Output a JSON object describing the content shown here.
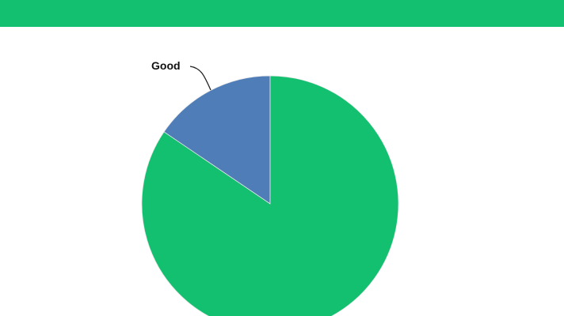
{
  "header": {
    "color": "#12C06F"
  },
  "chart_data": {
    "type": "pie",
    "slices": [
      {
        "label": "Good",
        "value": 15.5,
        "color": "#4F7DB8"
      },
      {
        "label": "",
        "value": 84.5,
        "color": "#12C06F"
      }
    ],
    "start_angle": "12 o'clock",
    "direction": "counterclockwise",
    "legend": "none"
  }
}
